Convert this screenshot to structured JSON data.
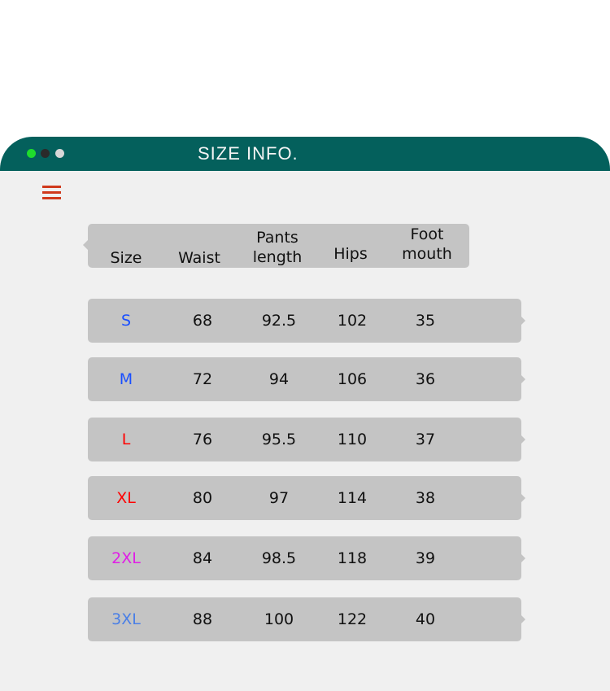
{
  "window": {
    "title": "SIZE INFO.",
    "dots": [
      "#1fdc2c",
      "#2a2a2a",
      "#d8d8d8"
    ],
    "header_color": "#04605c",
    "menu_icon": "hamburger-icon"
  },
  "table": {
    "headers": [
      [
        "Size"
      ],
      [
        "Waist"
      ],
      [
        "Pants",
        "length"
      ],
      [
        "Hips"
      ],
      [
        "Foot",
        "mouth"
      ]
    ],
    "rows": [
      {
        "size": "S",
        "color": "#1a4fff",
        "waist": "68",
        "pants_length": "92.5",
        "hips": "102",
        "foot_mouth": "35"
      },
      {
        "size": "M",
        "color": "#1a4fff",
        "waist": "72",
        "pants_length": "94",
        "hips": "106",
        "foot_mouth": "36"
      },
      {
        "size": "L",
        "color": "#ff0000",
        "waist": "76",
        "pants_length": "95.5",
        "hips": "110",
        "foot_mouth": "37"
      },
      {
        "size": "XL",
        "color": "#ff0000",
        "waist": "80",
        "pants_length": "97",
        "hips": "114",
        "foot_mouth": "38"
      },
      {
        "size": "2XL",
        "color": "#e01ee6",
        "waist": "84",
        "pants_length": "98.5",
        "hips": "118",
        "foot_mouth": "39"
      },
      {
        "size": "3XL",
        "color": "#4a7fe6",
        "waist": "88",
        "pants_length": "100",
        "hips": "122",
        "foot_mouth": "40"
      }
    ]
  }
}
